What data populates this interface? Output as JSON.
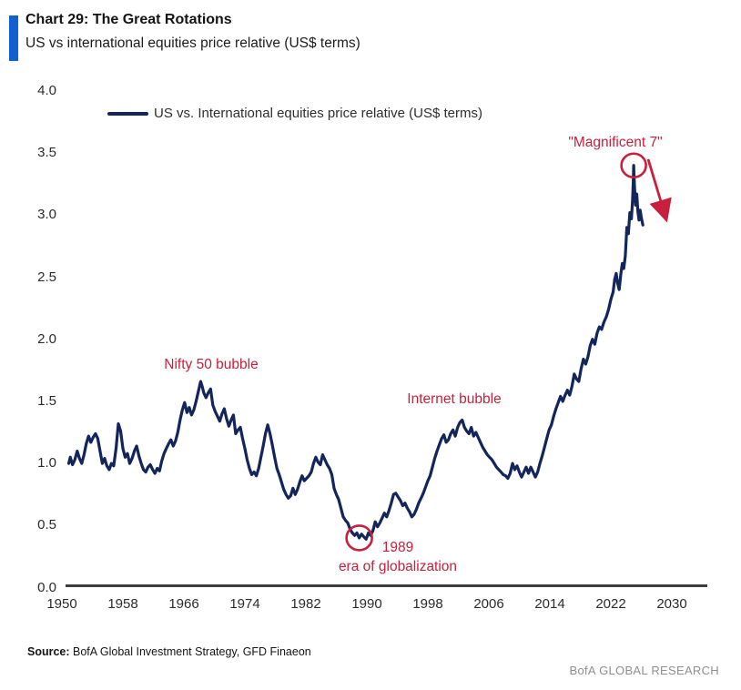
{
  "header": {
    "title": "Chart 29: The Great Rotations",
    "subtitle": "US vs international equities price relative (US$ terms)"
  },
  "legend": {
    "label": "US vs. International equities price relative (US$ terms)"
  },
  "footer": {
    "source_label": "Source:",
    "source_text": " BofA Global Investment Strategy, GFD Finaeon",
    "brand": "BofA GLOBAL RESEARCH"
  },
  "colors": {
    "line": "#13265c",
    "accent_red": "#c8203c",
    "header_bar_blue": "#1160d2",
    "axis": "#3d3d3d"
  },
  "chart_data": {
    "type": "line",
    "title": "US vs international equities price relative (US$ terms)",
    "xlabel": "",
    "ylabel": "",
    "x_range": [
      1950,
      2030
    ],
    "y_range": [
      0.0,
      4.0
    ],
    "grid": false,
    "legend_position": "top-left-inside",
    "xticks": [
      1950,
      1958,
      1966,
      1974,
      1982,
      1990,
      1998,
      2006,
      2014,
      2022,
      2030
    ],
    "yticks": [
      "0.0",
      "0.5",
      "1.0",
      "1.5",
      "2.0",
      "2.5",
      "3.0",
      "3.5",
      "4.0"
    ],
    "annotations": [
      {
        "id": "nifty",
        "text": "Nifty 50 bubble",
        "x": 1969.5,
        "y": 1.78
      },
      {
        "id": "internet",
        "text": "Internet bubble",
        "x": 2001.5,
        "y": 1.52
      },
      {
        "id": "mag7",
        "text": "\"Magnificent 7\"",
        "x": 2024.5,
        "y": 3.57
      },
      {
        "id": "year-1989",
        "text": "1989",
        "x": 1989,
        "y": 0.33
      },
      {
        "id": "era",
        "text": "era of globalization",
        "x": 1989,
        "y": 0.17
      }
    ],
    "marks": [
      {
        "type": "circle",
        "x": 2025.0,
        "y": 3.4
      },
      {
        "type": "circle",
        "x": 1989.0,
        "y": 0.4
      },
      {
        "type": "arrow",
        "x1": 2026.9,
        "y1": 3.45,
        "x2": 2029.2,
        "y2": 2.98
      }
    ],
    "series": [
      {
        "name": "US vs. International equities price relative (US$ terms)",
        "points": [
          [
            1950.9,
            1.0
          ],
          [
            1951.1,
            1.05
          ],
          [
            1951.4,
            0.99
          ],
          [
            1951.7,
            1.03
          ],
          [
            1952.0,
            1.1
          ],
          [
            1952.3,
            1.04
          ],
          [
            1952.6,
            1.0
          ],
          [
            1952.9,
            1.07
          ],
          [
            1953.2,
            1.16
          ],
          [
            1953.5,
            1.22
          ],
          [
            1953.8,
            1.17
          ],
          [
            1954.1,
            1.21
          ],
          [
            1954.4,
            1.24
          ],
          [
            1954.7,
            1.2
          ],
          [
            1955.0,
            1.1
          ],
          [
            1955.3,
            1.0
          ],
          [
            1955.6,
            1.04
          ],
          [
            1955.9,
            0.98
          ],
          [
            1956.2,
            0.95
          ],
          [
            1956.5,
            1.0
          ],
          [
            1956.8,
            0.98
          ],
          [
            1957.1,
            1.12
          ],
          [
            1957.4,
            1.32
          ],
          [
            1957.7,
            1.26
          ],
          [
            1958.0,
            1.12
          ],
          [
            1958.3,
            1.05
          ],
          [
            1958.6,
            1.08
          ],
          [
            1958.9,
            1.0
          ],
          [
            1959.2,
            1.04
          ],
          [
            1959.5,
            1.1
          ],
          [
            1959.8,
            1.14
          ],
          [
            1960.1,
            1.06
          ],
          [
            1960.4,
            1.0
          ],
          [
            1960.7,
            0.95
          ],
          [
            1961.0,
            0.93
          ],
          [
            1961.3,
            0.97
          ],
          [
            1961.6,
            0.99
          ],
          [
            1961.9,
            0.95
          ],
          [
            1962.2,
            0.92
          ],
          [
            1962.5,
            0.96
          ],
          [
            1962.8,
            0.94
          ],
          [
            1963.1,
            1.02
          ],
          [
            1963.4,
            1.08
          ],
          [
            1963.7,
            1.12
          ],
          [
            1964.0,
            1.16
          ],
          [
            1964.3,
            1.19
          ],
          [
            1964.6,
            1.14
          ],
          [
            1964.9,
            1.18
          ],
          [
            1965.2,
            1.25
          ],
          [
            1965.5,
            1.35
          ],
          [
            1965.8,
            1.43
          ],
          [
            1966.1,
            1.49
          ],
          [
            1966.4,
            1.41
          ],
          [
            1966.7,
            1.45
          ],
          [
            1967.0,
            1.39
          ],
          [
            1967.3,
            1.43
          ],
          [
            1967.6,
            1.5
          ],
          [
            1967.9,
            1.58
          ],
          [
            1968.2,
            1.66
          ],
          [
            1968.4,
            1.62
          ],
          [
            1968.6,
            1.57
          ],
          [
            1968.9,
            1.53
          ],
          [
            1969.2,
            1.57
          ],
          [
            1969.5,
            1.6
          ],
          [
            1969.8,
            1.47
          ],
          [
            1970.1,
            1.42
          ],
          [
            1970.4,
            1.38
          ],
          [
            1970.7,
            1.34
          ],
          [
            1971.0,
            1.4
          ],
          [
            1971.3,
            1.44
          ],
          [
            1971.6,
            1.36
          ],
          [
            1971.9,
            1.3
          ],
          [
            1972.2,
            1.35
          ],
          [
            1972.5,
            1.39
          ],
          [
            1972.8,
            1.24
          ],
          [
            1973.1,
            1.27
          ],
          [
            1973.4,
            1.29
          ],
          [
            1973.7,
            1.2
          ],
          [
            1974.0,
            1.12
          ],
          [
            1974.3,
            1.03
          ],
          [
            1974.6,
            0.96
          ],
          [
            1974.9,
            0.91
          ],
          [
            1975.2,
            0.93
          ],
          [
            1975.5,
            0.9
          ],
          [
            1975.8,
            0.96
          ],
          [
            1976.1,
            1.05
          ],
          [
            1976.4,
            1.14
          ],
          [
            1976.7,
            1.24
          ],
          [
            1977.0,
            1.31
          ],
          [
            1977.3,
            1.24
          ],
          [
            1977.6,
            1.15
          ],
          [
            1977.9,
            1.05
          ],
          [
            1978.2,
            0.96
          ],
          [
            1978.5,
            0.91
          ],
          [
            1978.8,
            0.85
          ],
          [
            1979.1,
            0.79
          ],
          [
            1979.4,
            0.75
          ],
          [
            1979.7,
            0.72
          ],
          [
            1980.0,
            0.74
          ],
          [
            1980.3,
            0.8
          ],
          [
            1980.6,
            0.75
          ],
          [
            1980.9,
            0.79
          ],
          [
            1981.2,
            0.85
          ],
          [
            1981.5,
            0.9
          ],
          [
            1981.8,
            0.86
          ],
          [
            1982.1,
            0.88
          ],
          [
            1982.4,
            0.9
          ],
          [
            1982.7,
            0.93
          ],
          [
            1983.0,
            1.0
          ],
          [
            1983.3,
            1.05
          ],
          [
            1983.6,
            1.01
          ],
          [
            1983.9,
            0.99
          ],
          [
            1984.2,
            1.07
          ],
          [
            1984.5,
            1.03
          ],
          [
            1984.8,
            0.99
          ],
          [
            1985.1,
            0.96
          ],
          [
            1985.4,
            0.91
          ],
          [
            1985.7,
            0.8
          ],
          [
            1986.0,
            0.75
          ],
          [
            1986.3,
            0.71
          ],
          [
            1986.6,
            0.64
          ],
          [
            1986.9,
            0.57
          ],
          [
            1987.2,
            0.54
          ],
          [
            1987.5,
            0.52
          ],
          [
            1987.8,
            0.47
          ],
          [
            1988.1,
            0.44
          ],
          [
            1988.4,
            0.42
          ],
          [
            1988.7,
            0.44
          ],
          [
            1989.0,
            0.4
          ],
          [
            1989.3,
            0.43
          ],
          [
            1989.6,
            0.41
          ],
          [
            1989.9,
            0.39
          ],
          [
            1990.2,
            0.44
          ],
          [
            1990.5,
            0.42
          ],
          [
            1990.8,
            0.46
          ],
          [
            1991.1,
            0.53
          ],
          [
            1991.4,
            0.49
          ],
          [
            1991.7,
            0.52
          ],
          [
            1992.0,
            0.56
          ],
          [
            1992.3,
            0.6
          ],
          [
            1992.6,
            0.57
          ],
          [
            1992.9,
            0.62
          ],
          [
            1993.2,
            0.68
          ],
          [
            1993.5,
            0.75
          ],
          [
            1993.8,
            0.76
          ],
          [
            1994.1,
            0.73
          ],
          [
            1994.4,
            0.7
          ],
          [
            1994.7,
            0.66
          ],
          [
            1995.0,
            0.68
          ],
          [
            1995.3,
            0.64
          ],
          [
            1995.6,
            0.61
          ],
          [
            1995.9,
            0.57
          ],
          [
            1996.2,
            0.59
          ],
          [
            1996.5,
            0.63
          ],
          [
            1996.8,
            0.68
          ],
          [
            1997.1,
            0.72
          ],
          [
            1997.4,
            0.76
          ],
          [
            1997.7,
            0.81
          ],
          [
            1998.0,
            0.86
          ],
          [
            1998.3,
            0.9
          ],
          [
            1998.6,
            0.97
          ],
          [
            1998.9,
            1.04
          ],
          [
            1999.2,
            1.1
          ],
          [
            1999.5,
            1.15
          ],
          [
            1999.8,
            1.2
          ],
          [
            2000.1,
            1.23
          ],
          [
            2000.4,
            1.17
          ],
          [
            2000.7,
            1.19
          ],
          [
            2001.0,
            1.24
          ],
          [
            2001.3,
            1.27
          ],
          [
            2001.6,
            1.22
          ],
          [
            2001.9,
            1.29
          ],
          [
            2002.2,
            1.33
          ],
          [
            2002.5,
            1.35
          ],
          [
            2002.8,
            1.29
          ],
          [
            2003.1,
            1.26
          ],
          [
            2003.4,
            1.24
          ],
          [
            2003.7,
            1.29
          ],
          [
            2004.0,
            1.22
          ],
          [
            2004.3,
            1.25
          ],
          [
            2004.6,
            1.21
          ],
          [
            2004.9,
            1.17
          ],
          [
            2005.2,
            1.13
          ],
          [
            2005.5,
            1.1
          ],
          [
            2005.8,
            1.07
          ],
          [
            2006.1,
            1.05
          ],
          [
            2006.4,
            1.03
          ],
          [
            2006.7,
            1.0
          ],
          [
            2007.0,
            0.97
          ],
          [
            2007.3,
            0.95
          ],
          [
            2007.6,
            0.93
          ],
          [
            2007.9,
            0.91
          ],
          [
            2008.2,
            0.9
          ],
          [
            2008.5,
            0.88
          ],
          [
            2008.8,
            0.92
          ],
          [
            2009.1,
            1.0
          ],
          [
            2009.4,
            0.95
          ],
          [
            2009.7,
            0.98
          ],
          [
            2010.0,
            0.93
          ],
          [
            2010.3,
            0.89
          ],
          [
            2010.6,
            0.93
          ],
          [
            2010.9,
            0.97
          ],
          [
            2011.2,
            0.92
          ],
          [
            2011.5,
            0.97
          ],
          [
            2011.8,
            0.93
          ],
          [
            2012.1,
            0.89
          ],
          [
            2012.4,
            0.93
          ],
          [
            2012.7,
            1.0
          ],
          [
            2013.0,
            1.06
          ],
          [
            2013.3,
            1.13
          ],
          [
            2013.6,
            1.2
          ],
          [
            2013.9,
            1.27
          ],
          [
            2014.2,
            1.31
          ],
          [
            2014.5,
            1.38
          ],
          [
            2014.8,
            1.44
          ],
          [
            2015.1,
            1.49
          ],
          [
            2015.4,
            1.54
          ],
          [
            2015.7,
            1.5
          ],
          [
            2016.0,
            1.55
          ],
          [
            2016.3,
            1.59
          ],
          [
            2016.6,
            1.55
          ],
          [
            2016.9,
            1.62
          ],
          [
            2017.2,
            1.72
          ],
          [
            2017.5,
            1.68
          ],
          [
            2017.8,
            1.66
          ],
          [
            2018.1,
            1.76
          ],
          [
            2018.4,
            1.84
          ],
          [
            2018.7,
            1.8
          ],
          [
            2019.0,
            1.86
          ],
          [
            2019.3,
            1.95
          ],
          [
            2019.6,
            2.0
          ],
          [
            2019.9,
            1.96
          ],
          [
            2020.2,
            2.05
          ],
          [
            2020.5,
            2.1
          ],
          [
            2020.8,
            2.08
          ],
          [
            2021.1,
            2.14
          ],
          [
            2021.4,
            2.18
          ],
          [
            2021.7,
            2.24
          ],
          [
            2022.0,
            2.32
          ],
          [
            2022.3,
            2.38
          ],
          [
            2022.5,
            2.48
          ],
          [
            2022.7,
            2.53
          ],
          [
            2022.9,
            2.45
          ],
          [
            2023.1,
            2.4
          ],
          [
            2023.3,
            2.52
          ],
          [
            2023.5,
            2.61
          ],
          [
            2023.7,
            2.57
          ],
          [
            2023.9,
            2.67
          ],
          [
            2024.1,
            2.9
          ],
          [
            2024.3,
            2.85
          ],
          [
            2024.5,
            3.02
          ],
          [
            2024.7,
            2.97
          ],
          [
            2024.85,
            3.12
          ],
          [
            2024.95,
            3.28
          ],
          [
            2025.0,
            3.4
          ],
          [
            2025.1,
            3.23
          ],
          [
            2025.25,
            3.08
          ],
          [
            2025.4,
            3.17
          ],
          [
            2025.55,
            3.03
          ],
          [
            2025.7,
            2.96
          ],
          [
            2025.85,
            3.04
          ],
          [
            2026.0,
            2.98
          ],
          [
            2026.2,
            2.92
          ]
        ]
      }
    ]
  }
}
